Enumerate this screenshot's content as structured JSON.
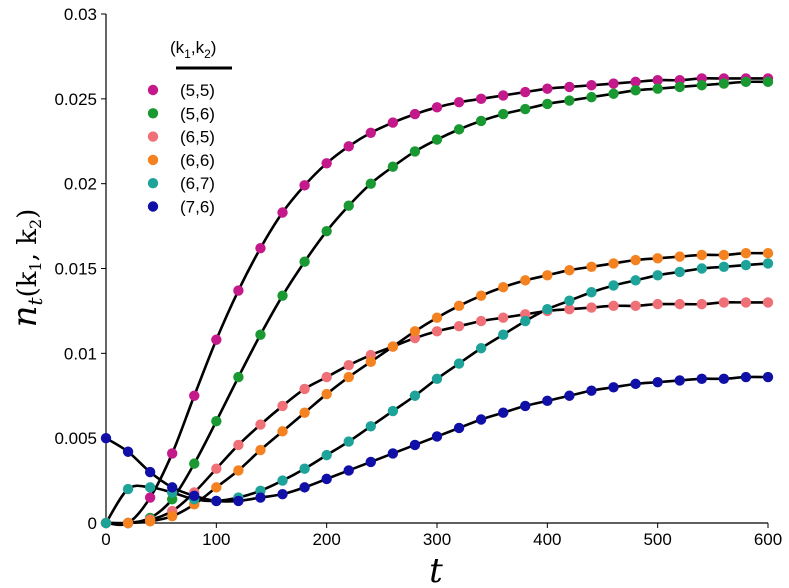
{
  "chart_data": {
    "type": "scatter",
    "xlabel": "t",
    "ylabel_main": "n",
    "ylabel_sub": "t",
    "ylabel_args": "(k",
    "ylabel_arg1": "1",
    "ylabel_mid": ", k",
    "ylabel_arg2": "2",
    "ylabel_close": ")",
    "xlim": [
      0,
      600
    ],
    "ylim": [
      0,
      0.03
    ],
    "x_ticks": [
      "0",
      "100",
      "200",
      "300",
      "400",
      "500",
      "600"
    ],
    "y_ticks": [
      "0",
      "0.005",
      "0.01",
      "0.015",
      "0.02",
      "0.025",
      "0.03"
    ],
    "legend": {
      "title": "(k1,k2)",
      "title_text": "(k",
      "title_sub1": "1",
      "title_mid": ",k",
      "title_sub2": "2",
      "title_close": ")",
      "placement": "top-left"
    },
    "fit_line_color": "#000000",
    "series": [
      {
        "name": "(5,5)",
        "color": "#c4198a",
        "x": [
          0,
          20,
          40,
          60,
          80,
          100,
          120,
          140,
          160,
          180,
          200,
          220,
          240,
          260,
          280,
          300,
          320,
          340,
          360,
          380,
          400,
          420,
          440,
          460,
          480,
          500,
          520,
          540,
          560,
          580,
          600
        ],
        "y": [
          0,
          0,
          0.0015,
          0.0041,
          0.0075,
          0.0108,
          0.0137,
          0.0162,
          0.0183,
          0.0199,
          0.0212,
          0.0222,
          0.023,
          0.0236,
          0.0241,
          0.0245,
          0.0248,
          0.025,
          0.0252,
          0.0254,
          0.0256,
          0.0257,
          0.0258,
          0.0259,
          0.026,
          0.0261,
          0.0261,
          0.0262,
          0.0262,
          0.0262,
          0.0262
        ]
      },
      {
        "name": "(5,6)",
        "color": "#1a9933",
        "x": [
          0,
          20,
          40,
          60,
          80,
          100,
          120,
          140,
          160,
          180,
          200,
          220,
          240,
          260,
          280,
          300,
          320,
          340,
          360,
          380,
          400,
          420,
          440,
          460,
          480,
          500,
          520,
          540,
          560,
          580,
          600
        ],
        "y": [
          0,
          0,
          0.0003,
          0.0014,
          0.0035,
          0.006,
          0.0086,
          0.0111,
          0.0134,
          0.0154,
          0.0172,
          0.0187,
          0.02,
          0.021,
          0.0219,
          0.0226,
          0.0232,
          0.0237,
          0.0241,
          0.0244,
          0.0247,
          0.0249,
          0.0251,
          0.0253,
          0.0255,
          0.0256,
          0.0257,
          0.0258,
          0.0259,
          0.026,
          0.026
        ]
      },
      {
        "name": "(6,5)",
        "color": "#f07078",
        "x": [
          0,
          20,
          40,
          60,
          80,
          100,
          120,
          140,
          160,
          180,
          200,
          220,
          240,
          260,
          280,
          300,
          320,
          340,
          360,
          380,
          400,
          420,
          440,
          460,
          480,
          500,
          520,
          540,
          560,
          580,
          600
        ],
        "y": [
          0,
          0,
          0.0002,
          0.0007,
          0.0018,
          0.0032,
          0.0046,
          0.0058,
          0.0069,
          0.0079,
          0.0086,
          0.0093,
          0.0099,
          0.0104,
          0.0109,
          0.0113,
          0.0116,
          0.0119,
          0.0121,
          0.0123,
          0.0125,
          0.0126,
          0.0127,
          0.0128,
          0.0128,
          0.0129,
          0.0129,
          0.0129,
          0.013,
          0.013,
          0.013
        ]
      },
      {
        "name": "(6,6)",
        "color": "#f58220",
        "x": [
          0,
          20,
          40,
          60,
          80,
          100,
          120,
          140,
          160,
          180,
          200,
          220,
          240,
          260,
          280,
          300,
          320,
          340,
          360,
          380,
          400,
          420,
          440,
          460,
          480,
          500,
          520,
          540,
          560,
          580,
          600
        ],
        "y": [
          0,
          0,
          0.0001,
          0.0004,
          0.0011,
          0.0021,
          0.0031,
          0.0043,
          0.0054,
          0.0065,
          0.0076,
          0.0086,
          0.0095,
          0.0104,
          0.0113,
          0.0121,
          0.0128,
          0.0134,
          0.0139,
          0.0143,
          0.0146,
          0.0149,
          0.0151,
          0.0153,
          0.0155,
          0.0156,
          0.0157,
          0.0158,
          0.0158,
          0.0159,
          0.0159
        ]
      },
      {
        "name": "(6,7)",
        "color": "#1ea39a",
        "x": [
          0,
          20,
          40,
          60,
          80,
          100,
          120,
          140,
          160,
          180,
          200,
          220,
          240,
          260,
          280,
          300,
          320,
          340,
          360,
          380,
          400,
          420,
          440,
          460,
          480,
          500,
          520,
          540,
          560,
          580,
          600
        ],
        "y": [
          0,
          0.002,
          0.0021,
          0.0018,
          0.0014,
          0.0013,
          0.0015,
          0.0019,
          0.0025,
          0.0032,
          0.004,
          0.0048,
          0.0057,
          0.0066,
          0.0075,
          0.0085,
          0.0094,
          0.0103,
          0.0111,
          0.0119,
          0.0126,
          0.0131,
          0.0136,
          0.014,
          0.0143,
          0.0146,
          0.0148,
          0.015,
          0.0151,
          0.0152,
          0.0153
        ]
      },
      {
        "name": "(7,6)",
        "color": "#1010a8",
        "x": [
          0,
          20,
          40,
          60,
          80,
          100,
          120,
          140,
          160,
          180,
          200,
          220,
          240,
          260,
          280,
          300,
          320,
          340,
          360,
          380,
          400,
          420,
          440,
          460,
          480,
          500,
          520,
          540,
          560,
          580,
          600
        ],
        "y": [
          0.005,
          0.0042,
          0.003,
          0.0021,
          0.0016,
          0.0013,
          0.0013,
          0.0015,
          0.0017,
          0.0021,
          0.0026,
          0.0031,
          0.0036,
          0.0041,
          0.0046,
          0.0051,
          0.0056,
          0.0061,
          0.0065,
          0.0069,
          0.0072,
          0.0075,
          0.0078,
          0.008,
          0.0082,
          0.0083,
          0.0084,
          0.0085,
          0.0085,
          0.0086,
          0.0086
        ]
      }
    ]
  }
}
